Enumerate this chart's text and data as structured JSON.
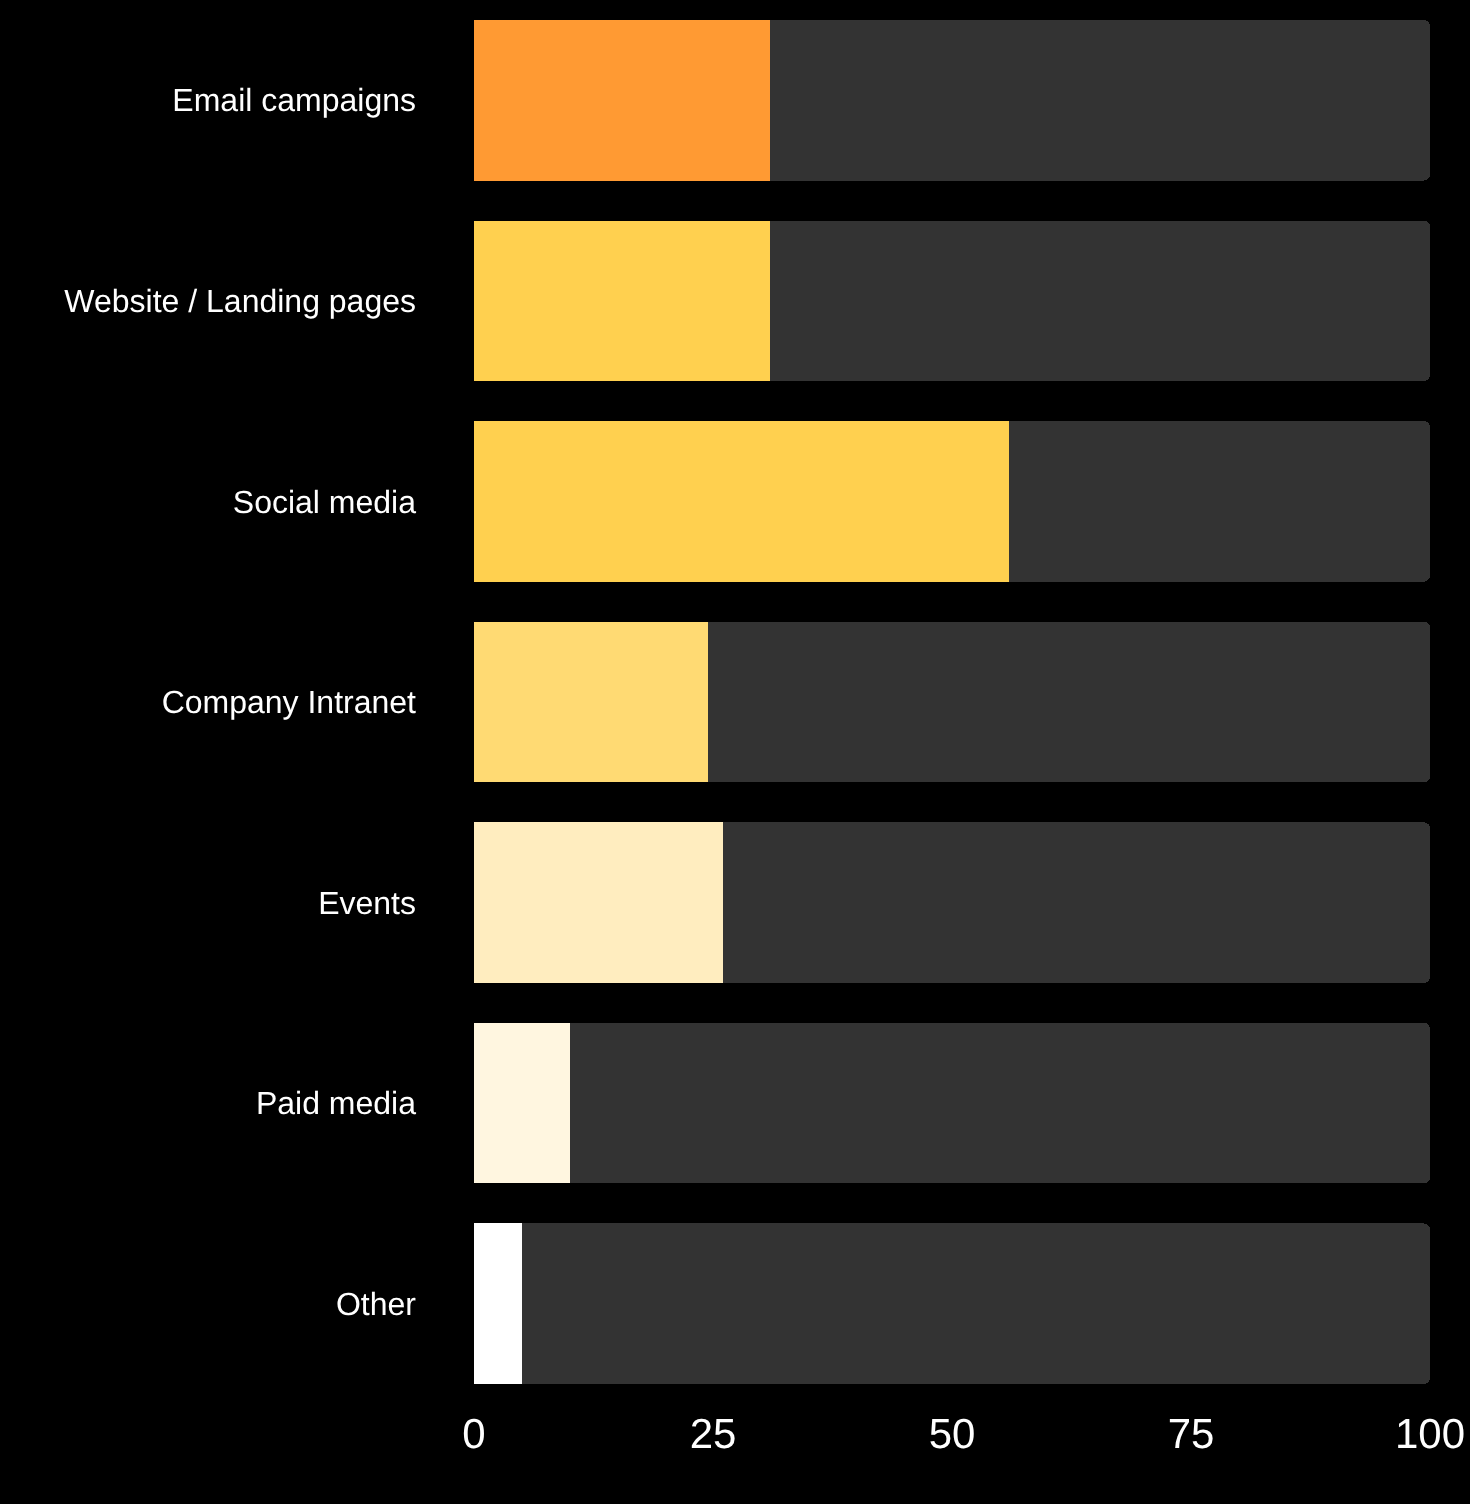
{
  "chart_data": {
    "type": "bar",
    "orientation": "horizontal",
    "stacked": true,
    "categories": [
      "Email campaigns",
      "Website / Landing pages",
      "Social media",
      "Company Intranet",
      "Events",
      "Paid media",
      "Other"
    ],
    "series": [
      {
        "colors": [
          "#ff9a33",
          "#ffd04f",
          "#ffd04f",
          "#ffda73",
          "#ffedbf",
          "#fff6e0",
          "#ffffff"
        ],
        "values": [
          31,
          31,
          56,
          24.5,
          26,
          10,
          5
        ]
      },
      {
        "color": "#333333",
        "values": [
          69,
          69,
          44,
          75.5,
          74,
          90,
          95
        ]
      }
    ],
    "xlim": [
      0,
      100
    ],
    "xticks": [
      0,
      25,
      50,
      75,
      100
    ],
    "grid": false
  }
}
